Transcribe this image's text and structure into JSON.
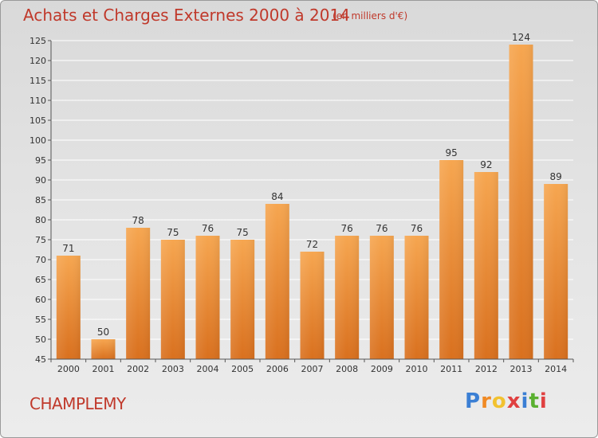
{
  "chart_title": "Achats et Charges Externes 2000 à 2014",
  "chart_subtitle": "(en milliers d'€)",
  "commune_name": "CHAMPLEMY",
  "logo": {
    "letters": [
      "P",
      "r",
      "o",
      "x",
      "i",
      "t",
      "i"
    ],
    "colors": [
      "#3b7fd4",
      "#f08a24",
      "#f2c230",
      "#e04040",
      "#3b7fd4",
      "#5ab030",
      "#e04040"
    ]
  },
  "colors": {
    "title": "#c0392b",
    "bar_top": "#f6a650",
    "bar_bottom": "#d9701e",
    "grid": "#ffffff"
  },
  "chart_data": {
    "type": "bar",
    "title": "Achats et Charges Externes 2000 à 2014",
    "subtitle": "(en milliers d'€)",
    "categories": [
      "2000",
      "2001",
      "2002",
      "2003",
      "2004",
      "2005",
      "2006",
      "2007",
      "2008",
      "2009",
      "2010",
      "2011",
      "2012",
      "2013",
      "2014"
    ],
    "values": [
      71,
      50,
      78,
      75,
      76,
      75,
      84,
      72,
      76,
      76,
      76,
      95,
      92,
      124,
      89
    ],
    "ylim": [
      45,
      125
    ],
    "yticks": [
      45,
      50,
      55,
      60,
      65,
      70,
      75,
      80,
      85,
      90,
      95,
      100,
      105,
      110,
      115,
      120,
      125
    ],
    "grid": true
  }
}
